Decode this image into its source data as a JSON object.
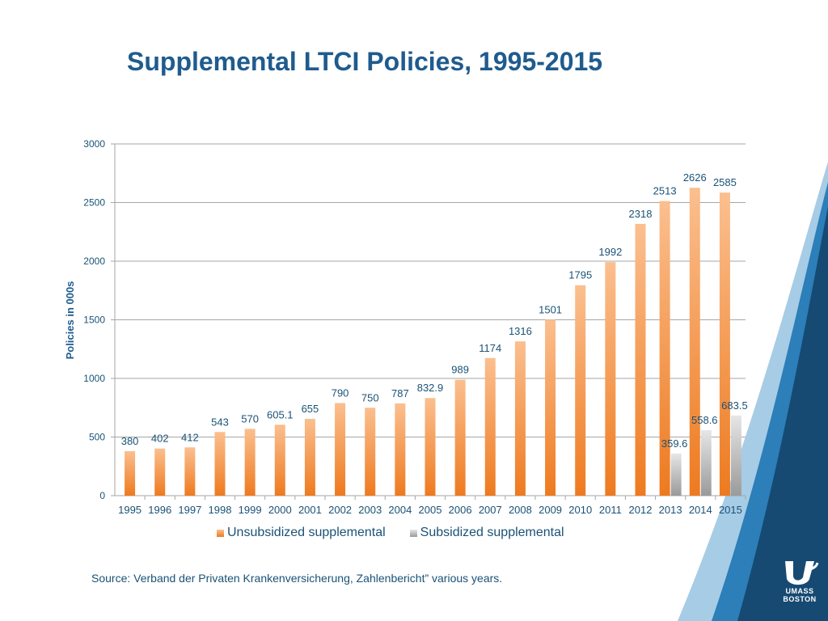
{
  "slide": {
    "title": "Supplemental LTCI Policies, 1995-2015",
    "source": "Source: Verband der Privaten Krankenversicherung, Zahlenbericht” various years."
  },
  "logo": {
    "line1": "UMASS",
    "line2": "BOSTON"
  },
  "colors": {
    "title": "#1f5b8e",
    "text": "#1a5276",
    "bar_unsub_light": "#fbbf8f",
    "bar_unsub_dark": "#ee7a1f",
    "bar_sub_light": "#e6e6e6",
    "bar_sub_dark": "#9a9a9a",
    "gridline": "#a6a6a6",
    "corner_navy": "#164a72",
    "corner_blue": "#2c7fb8"
  },
  "chart_data": {
    "type": "bar",
    "title": "",
    "xlabel": "",
    "ylabel": "Policies in 000s",
    "ylim": [
      0,
      3000
    ],
    "yticks": [
      0,
      500,
      1000,
      1500,
      2000,
      2500,
      3000
    ],
    "grid": true,
    "legend_position": "bottom",
    "categories": [
      "1995",
      "1996",
      "1997",
      "1998",
      "1999",
      "2000",
      "2001",
      "2002",
      "2003",
      "2004",
      "2005",
      "2006",
      "2007",
      "2008",
      "2009",
      "2010",
      "2011",
      "2012",
      "2013",
      "2014",
      "2015"
    ],
    "series": [
      {
        "name": "Unsubsidized supplemental",
        "values": [
          380,
          402,
          412,
          543,
          570,
          605.1,
          655,
          790,
          750,
          787,
          832.9,
          989,
          1174,
          1316,
          1501,
          1795,
          1992,
          2318,
          2513,
          2626,
          2585
        ],
        "labels": [
          "380",
          "402",
          "412",
          "543",
          "570",
          "605.1",
          "655",
          "790",
          "750",
          "787",
          "832.9",
          "989",
          "1174",
          "1316",
          "1501",
          "1795",
          "1992",
          "2318",
          "2513",
          "2626",
          "2585"
        ]
      },
      {
        "name": "Subsidized supplemental",
        "values": [
          null,
          null,
          null,
          null,
          null,
          null,
          null,
          null,
          null,
          null,
          null,
          null,
          null,
          null,
          null,
          null,
          null,
          null,
          359.6,
          558.6,
          683.5
        ],
        "labels": [
          null,
          null,
          null,
          null,
          null,
          null,
          null,
          null,
          null,
          null,
          null,
          null,
          null,
          null,
          null,
          null,
          null,
          null,
          "359.6",
          "558.6",
          "683.5"
        ]
      }
    ]
  }
}
